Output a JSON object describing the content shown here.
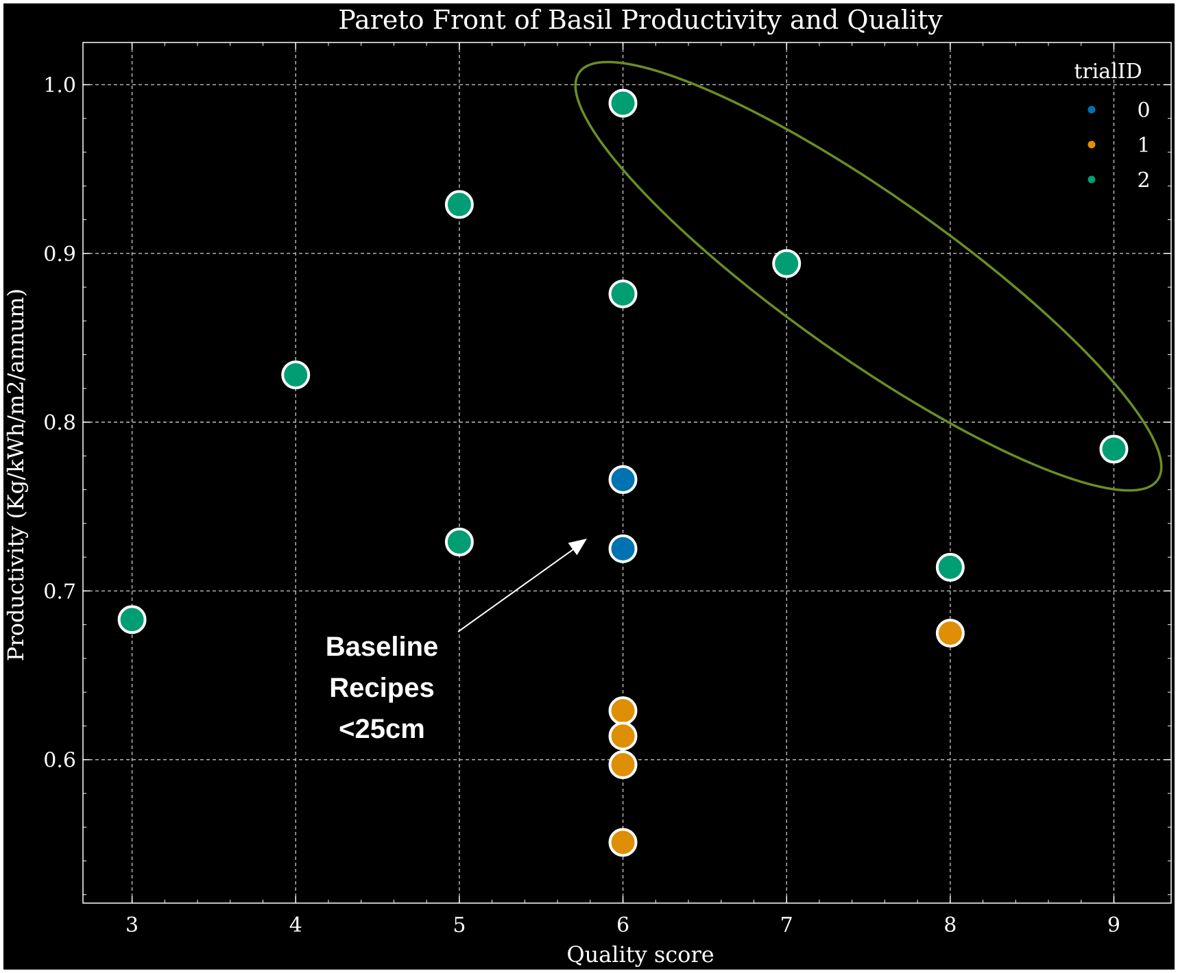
{
  "chart_data": {
    "type": "scatter",
    "title": "Pareto Front of Basil Productivity and Quality",
    "xlabel": "Quality score",
    "ylabel": "Productivity (Kg/kWh/m2/annum)",
    "xlim": [
      2.7,
      9.35
    ],
    "ylim": [
      0.515,
      1.025
    ],
    "xticks": [
      3,
      4,
      5,
      6,
      7,
      8,
      9
    ],
    "yticks": [
      0.6,
      0.7,
      0.8,
      0.9,
      1.0
    ],
    "xtick_labels": [
      "3",
      "4",
      "5",
      "6",
      "7",
      "8",
      "9"
    ],
    "ytick_labels": [
      "0.6",
      "0.7",
      "0.8",
      "0.9",
      "1.0"
    ],
    "grid": true,
    "legend": {
      "title": "trialID",
      "placement": "top-right"
    },
    "series": [
      {
        "name": "0",
        "color": "#0173b2",
        "points": [
          {
            "x": 6,
            "y": 0.766
          },
          {
            "x": 6,
            "y": 0.725
          }
        ]
      },
      {
        "name": "1",
        "color": "#de8f05",
        "points": [
          {
            "x": 6,
            "y": 0.629
          },
          {
            "x": 6,
            "y": 0.614
          },
          {
            "x": 6,
            "y": 0.597
          },
          {
            "x": 6,
            "y": 0.551
          },
          {
            "x": 8,
            "y": 0.675
          }
        ]
      },
      {
        "name": "2",
        "color": "#029e73",
        "points": [
          {
            "x": 3,
            "y": 0.683
          },
          {
            "x": 4,
            "y": 0.828
          },
          {
            "x": 5,
            "y": 0.929
          },
          {
            "x": 5,
            "y": 0.729
          },
          {
            "x": 6,
            "y": 0.989
          },
          {
            "x": 6,
            "y": 0.876
          },
          {
            "x": 7,
            "y": 0.894
          },
          {
            "x": 8,
            "y": 0.714
          },
          {
            "x": 9,
            "y": 0.784
          }
        ]
      }
    ],
    "annotations": [
      {
        "text_lines": [
          "Baseline",
          "Recipes",
          "<25cm"
        ],
        "arrow_to": {
          "x": 5.78,
          "y": 0.731
        }
      }
    ],
    "highlight": {
      "shape": "ellipse",
      "color": "#6b8e23"
    }
  },
  "colors": {
    "background": "#000000",
    "foreground": "#ffffff",
    "grid": "#bdbdbd",
    "marker_edge": "#ffffff"
  }
}
